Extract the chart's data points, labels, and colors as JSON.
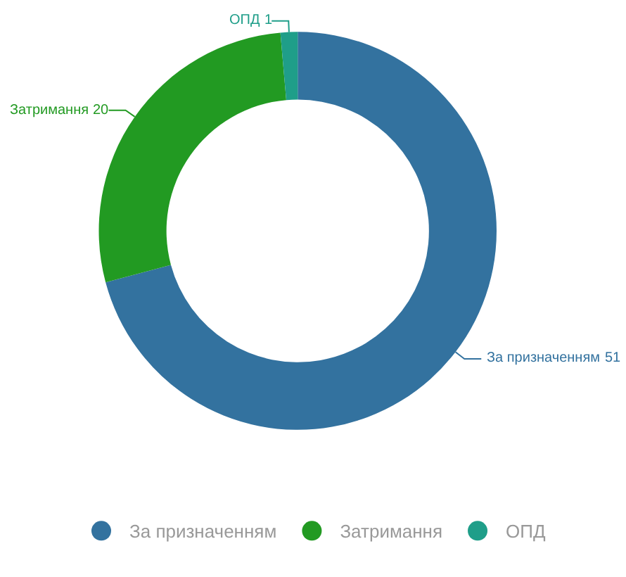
{
  "chart_data": {
    "type": "donut",
    "categories": [
      "За призначенням",
      "Затримання",
      "ОПД"
    ],
    "values": [
      51,
      20,
      1
    ],
    "colors": [
      "#33729f",
      "#229a22",
      "#1f9e89"
    ],
    "data_labels": true,
    "legend": "bottom"
  }
}
